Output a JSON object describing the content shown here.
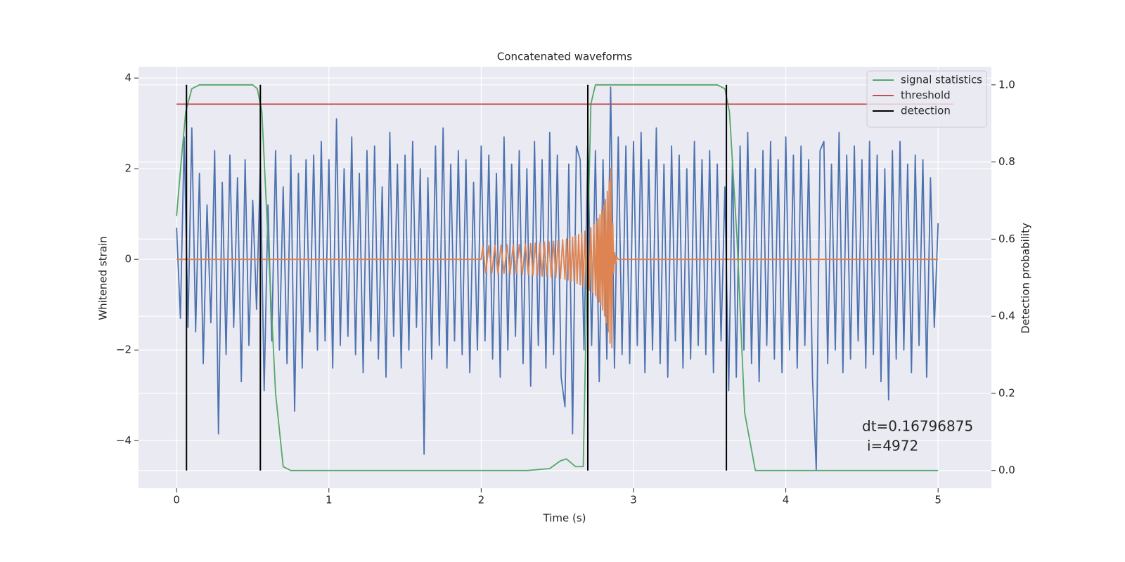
{
  "chart_data": {
    "type": "line",
    "title": "Concatenated waveforms",
    "x_label": "Time (s)",
    "y_label": "Whitened strain",
    "y2_label": "Detection probability",
    "xlim": [
      -0.25,
      5.35
    ],
    "ylim": [
      -5.05,
      4.25
    ],
    "y2lim": [
      -0.046,
      1.047
    ],
    "xticks": [
      0,
      1,
      2,
      3,
      4,
      5
    ],
    "yticks": [
      {
        "value": -4,
        "label": "−4"
      },
      {
        "value": -2,
        "label": "−2"
      },
      0,
      2,
      4
    ],
    "y2ticks": [
      {
        "value": 0,
        "label": "0.0"
      },
      0.2,
      0.4,
      0.6,
      0.8,
      {
        "value": 1,
        "label": "1.0"
      }
    ],
    "grid": true,
    "legend": "upper right",
    "annotation": [
      "dt=0.16796875",
      "i=4972"
    ],
    "series": [
      {
        "kind": "line",
        "color": "#4c72b0",
        "axis": "y",
        "x": [
          0,
          0.025,
          0.05,
          0.075,
          0.1,
          0.125,
          0.15,
          0.175,
          0.2,
          0.225,
          0.25,
          0.275,
          0.3,
          0.325,
          0.35,
          0.375,
          0.4,
          0.425,
          0.45,
          0.475,
          0.5,
          0.525,
          0.55,
          0.575,
          0.6,
          0.625,
          0.65,
          0.675,
          0.7,
          0.725,
          0.75,
          0.775,
          0.8,
          0.825,
          0.85,
          0.875,
          0.9,
          0.925,
          0.95,
          0.975,
          1,
          1.025,
          1.05,
          1.075,
          1.1,
          1.125,
          1.15,
          1.175,
          1.2,
          1.225,
          1.25,
          1.275,
          1.3,
          1.325,
          1.35,
          1.375,
          1.4,
          1.425,
          1.45,
          1.475,
          1.5,
          1.525,
          1.55,
          1.575,
          1.6,
          1.625,
          1.65,
          1.675,
          1.7,
          1.725,
          1.75,
          1.775,
          1.8,
          1.825,
          1.85,
          1.875,
          1.9,
          1.925,
          1.95,
          1.975,
          2,
          2.025,
          2.05,
          2.075,
          2.1,
          2.125,
          2.15,
          2.175,
          2.2,
          2.225,
          2.25,
          2.275,
          2.3,
          2.325,
          2.35,
          2.375,
          2.4,
          2.425,
          2.45,
          2.475,
          2.5,
          2.525,
          2.55,
          2.575,
          2.6,
          2.625,
          2.65,
          2.675,
          2.7,
          2.725,
          2.75,
          2.775,
          2.8,
          2.825,
          2.85,
          2.875,
          2.9,
          2.925,
          2.95,
          2.975,
          3,
          3.025,
          3.05,
          3.075,
          3.1,
          3.125,
          3.15,
          3.175,
          3.2,
          3.225,
          3.25,
          3.275,
          3.3,
          3.325,
          3.35,
          3.375,
          3.4,
          3.425,
          3.45,
          3.475,
          3.5,
          3.525,
          3.55,
          3.575,
          3.6,
          3.625,
          3.65,
          3.675,
          3.7,
          3.725,
          3.75,
          3.775,
          3.8,
          3.825,
          3.85,
          3.875,
          3.9,
          3.925,
          3.95,
          3.975,
          4,
          4.025,
          4.05,
          4.075,
          4.1,
          4.125,
          4.15,
          4.175,
          4.2,
          4.225,
          4.25,
          4.275,
          4.3,
          4.325,
          4.35,
          4.375,
          4.4,
          4.425,
          4.45,
          4.475,
          4.5,
          4.525,
          4.55,
          4.575,
          4.6,
          4.625,
          4.65,
          4.675,
          4.7,
          4.725,
          4.75,
          4.775,
          4.8,
          4.825,
          4.85,
          4.875,
          4.9,
          4.925,
          4.95,
          4.975,
          5
        ],
        "values": [
          0.7,
          -1.3,
          2.7,
          -1.5,
          2.9,
          -1.6,
          1.9,
          -2.3,
          1.2,
          -1.4,
          2.4,
          -3.85,
          1.7,
          -2.1,
          2.3,
          -1.5,
          1.8,
          -2.7,
          2.2,
          -1.9,
          1.3,
          -1.1,
          2.1,
          -2.9,
          1.2,
          -1.8,
          2.4,
          -2.0,
          1.6,
          -2.3,
          2.3,
          -3.35,
          1.9,
          -2.4,
          2.2,
          -1.6,
          2.3,
          -2.0,
          2.6,
          -1.8,
          2.2,
          -2.4,
          3.1,
          -1.9,
          2.0,
          -1.7,
          2.7,
          -2.1,
          1.9,
          -2.5,
          2.4,
          -1.8,
          2.5,
          -2.2,
          1.6,
          -2.6,
          2.8,
          -1.7,
          2.1,
          -2.4,
          2.3,
          -2.0,
          2.6,
          -1.5,
          2.0,
          -4.3,
          1.8,
          -2.2,
          2.5,
          -1.9,
          2.9,
          -2.4,
          2.1,
          -1.8,
          2.4,
          -2.1,
          2.2,
          -2.5,
          1.7,
          -2.0,
          2.5,
          -1.8,
          2.3,
          -2.2,
          1.9,
          -2.6,
          2.7,
          -2.0,
          2.1,
          -1.7,
          2.4,
          -2.3,
          2.0,
          -2.8,
          2.6,
          -1.9,
          2.2,
          -2.4,
          2.8,
          -2.1,
          2.3,
          -2.6,
          -3.25,
          2.1,
          -3.85,
          2.5,
          2.2,
          -2.0,
          2.6,
          -1.9,
          2.4,
          -2.7,
          2.2,
          -2.2,
          3.8,
          -2.4,
          2.7,
          -2.1,
          2.5,
          -2.3,
          2.6,
          -1.9,
          2.8,
          -2.5,
          2.2,
          -2.0,
          2.9,
          -2.3,
          2.1,
          -2.6,
          2.5,
          -1.8,
          2.3,
          -2.4,
          2.0,
          -2.2,
          2.6,
          -1.9,
          2.2,
          -2.1,
          2.4,
          -2.5,
          2.1,
          -1.8,
          1.6,
          -2.9,
          2.2,
          -2.6,
          2.5,
          -2.0,
          2.8,
          -2.3,
          2.0,
          -2.7,
          2.4,
          -1.9,
          2.6,
          -2.2,
          2.2,
          -2.5,
          2.7,
          -2.0,
          2.3,
          -2.4,
          2.5,
          -1.9,
          2.2,
          -2.6,
          -4.65,
          2.4,
          2.6,
          -2.3,
          2.1,
          -2.0,
          2.8,
          -2.5,
          2.3,
          -2.2,
          2.5,
          -1.8,
          2.2,
          -2.4,
          2.6,
          -2.1,
          2.3,
          -2.7,
          2.0,
          -3.1,
          2.4,
          -2.2,
          2.6,
          -2.0,
          2.1,
          -2.5,
          2.3,
          -1.9,
          2.2,
          -2.6,
          1.8,
          -1.5,
          0.8
        ]
      },
      {
        "kind": "line",
        "color": "#dd8452",
        "axis": "y",
        "x": [
          0,
          2.0,
          2.01,
          2.03,
          2.05,
          2.07,
          2.09,
          2.11,
          2.13,
          2.15,
          2.17,
          2.19,
          2.21,
          2.23,
          2.25,
          2.27,
          2.29,
          2.31,
          2.325,
          2.34,
          2.355,
          2.37,
          2.385,
          2.4,
          2.415,
          2.43,
          2.445,
          2.46,
          2.475,
          2.49,
          2.505,
          2.52,
          2.535,
          2.55,
          2.56,
          2.57,
          2.58,
          2.59,
          2.6,
          2.61,
          2.62,
          2.63,
          2.64,
          2.65,
          2.66,
          2.67,
          2.68,
          2.69,
          2.7,
          2.71,
          2.72,
          2.73,
          2.74,
          2.75,
          2.756,
          2.762,
          2.768,
          2.774,
          2.78,
          2.786,
          2.792,
          2.798,
          2.804,
          2.81,
          2.816,
          2.822,
          2.828,
          2.834,
          2.84,
          2.846,
          2.852,
          2.858,
          2.864,
          2.87,
          2.876,
          2.882,
          2.89,
          2.9,
          2.92,
          5.0
        ],
        "values": [
          0,
          0,
          0.3,
          -0.3,
          0.3,
          -0.3,
          0.31,
          -0.31,
          0.31,
          -0.31,
          0.32,
          -0.32,
          0.32,
          -0.32,
          0.33,
          -0.33,
          0.34,
          -0.34,
          0.35,
          -0.35,
          0.36,
          -0.36,
          0.37,
          -0.37,
          0.38,
          -0.38,
          0.39,
          -0.39,
          0.4,
          -0.4,
          0.42,
          -0.42,
          0.44,
          -0.44,
          0.45,
          -0.46,
          0.47,
          -0.48,
          0.49,
          -0.5,
          0.52,
          -0.53,
          0.55,
          -0.56,
          0.58,
          -0.6,
          0.62,
          -0.64,
          0.66,
          -0.68,
          0.7,
          -0.73,
          0.76,
          -0.8,
          0.83,
          -0.86,
          0.9,
          -0.94,
          0.98,
          -1.02,
          1.07,
          -1.12,
          1.18,
          -1.25,
          1.32,
          -1.4,
          1.5,
          -1.6,
          1.72,
          -1.85,
          2.0,
          -1.95,
          0.8,
          -0.3,
          0.15,
          -0.1,
          0.05,
          0,
          0,
          0
        ]
      },
      {
        "kind": "line",
        "name": "signal statistics",
        "color": "#55a868",
        "axis": "y2",
        "x": [
          0,
          0.03,
          0.06,
          0.1,
          0.15,
          0.5,
          0.53,
          0.56,
          0.6,
          0.65,
          0.7,
          0.75,
          2.3,
          2.45,
          2.52,
          2.56,
          2.62,
          2.67,
          2.7,
          2.72,
          2.75,
          2.8,
          3.55,
          3.6,
          3.63,
          3.68,
          3.73,
          3.8,
          5
        ],
        "values": [
          0.66,
          0.8,
          0.93,
          0.99,
          1.0,
          1.0,
          0.99,
          0.93,
          0.6,
          0.2,
          0.01,
          0,
          0,
          0.005,
          0.025,
          0.03,
          0.01,
          0.01,
          0.6,
          0.95,
          1.0,
          1.0,
          1.0,
          0.99,
          0.93,
          0.6,
          0.15,
          0,
          0
        ]
      },
      {
        "kind": "line",
        "name": "threshold",
        "color": "#c44e52",
        "axis": "y2",
        "x": [
          0,
          5.1
        ],
        "values": [
          0.95,
          0.95
        ]
      },
      {
        "kind": "vlines",
        "name": "detection",
        "color": "#000000",
        "axis": "y2",
        "x": [
          0.065,
          0.55,
          2.7,
          3.61
        ],
        "values": [
          1,
          1,
          1,
          1
        ]
      }
    ]
  }
}
